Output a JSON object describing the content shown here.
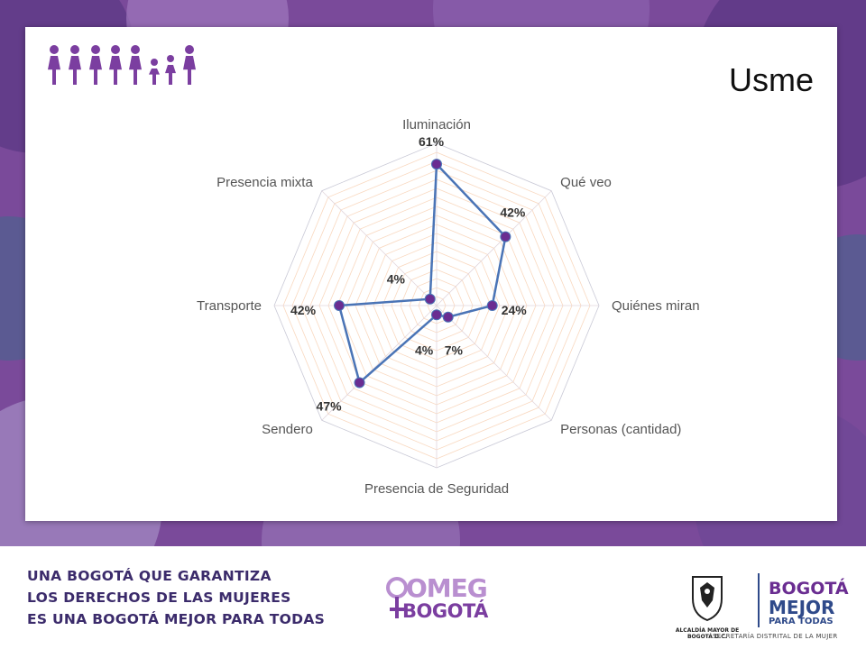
{
  "title": "Usme",
  "colors": {
    "series": "#4a74b6",
    "marker": "#6a2d91",
    "grid": "#f4b88a",
    "bg_purple": "#7a4a9a",
    "brand_dark": "#3b2b6b",
    "brand_light": "#b98fd0"
  },
  "chart_data": {
    "type": "radar",
    "title": "Usme",
    "categories": [
      "Iluminación",
      "Qué veo",
      "Quiénes miran",
      "Personas (cantidad)",
      "Presencia de Seguridad",
      "Sendero",
      "Transporte",
      "Presencia mixta"
    ],
    "series": [
      {
        "values": [
          61,
          42,
          24,
          7,
          4,
          47,
          42,
          4
        ],
        "data_labels": [
          "61%",
          "42%",
          "24%",
          "7%",
          "4%",
          "47%",
          "42%",
          "4%"
        ]
      }
    ],
    "rlim": [
      0,
      70
    ],
    "grid": true,
    "unit": "%"
  },
  "footer": {
    "slogan_lines": [
      "UNA BOGOTÁ QUE GARANTIZA",
      "LOS DERECHOS DE LAS MUJERES",
      "ES UNA BOGOTÁ MEJOR PARA TODAS"
    ],
    "omeg_top": "OMEG",
    "omeg_bottom": "BOGOTÁ",
    "alcaldia": "ALCALDÍA MAYOR DE BOGOTÁ D.C.",
    "bogota_logo": {
      "line1": "BOGOTÁ",
      "line2": "MEJOR",
      "line3": "PARA TODAS"
    },
    "secretaria": "SECRETARÍA DISTRITAL DE LA MUJER"
  },
  "icons": [
    "women-group-icon",
    "bogota-shield-icon",
    "venus-icon"
  ]
}
